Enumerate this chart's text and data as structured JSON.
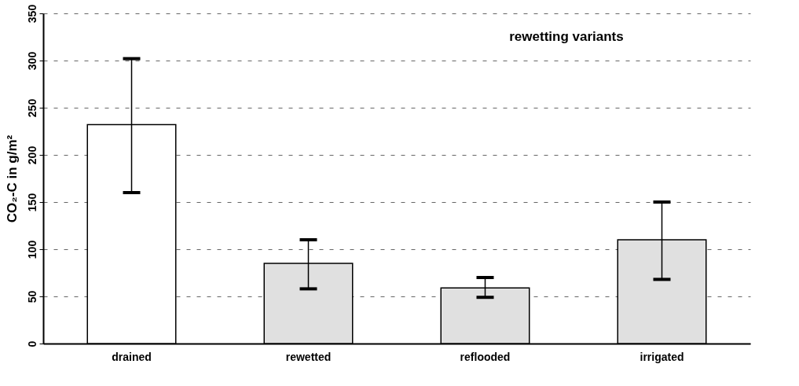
{
  "chart_data": {
    "type": "bar",
    "ylabel": "CO₂-C in g/m²",
    "categories": [
      "drained",
      "rewetted",
      "reflooded",
      "irrigated"
    ],
    "values": [
      232,
      85,
      59,
      110
    ],
    "colors": [
      "#ffffff",
      "#e0e0e0",
      "#e0e0e0",
      "#e0e0e0"
    ],
    "errors": [
      [
        160,
        302
      ],
      [
        58,
        110
      ],
      [
        49,
        70
      ],
      [
        68,
        150
      ]
    ],
    "ylim": [
      0,
      350
    ],
    "yticks": [
      0,
      50,
      100,
      150,
      200,
      250,
      300,
      350
    ],
    "grid": "y",
    "annotations": [
      "rewetting variants"
    ]
  }
}
